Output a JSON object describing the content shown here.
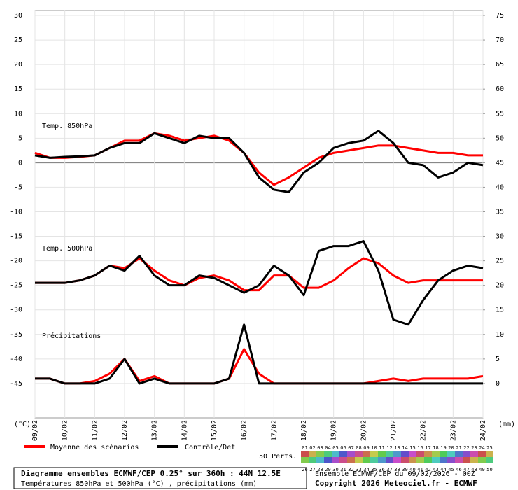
{
  "chart_data": {
    "type": "line",
    "panel_labels": [
      "Temp. 850hPa",
      "Temp. 500hPa",
      "Précipitations"
    ],
    "ylabel": "(°C)",
    "y2label": "(mm)",
    "x": [
      0,
      0.5,
      1,
      1.5,
      2,
      2.5,
      3,
      3.5,
      4,
      4.5,
      5,
      5.5,
      6,
      6.5,
      7,
      7.5,
      8,
      8.5,
      9,
      9.5,
      10,
      10.5,
      11,
      11.5,
      12,
      12.5,
      13,
      13.5,
      14,
      14.5,
      15
    ],
    "xlim": [
      0,
      15
    ],
    "xticks": [
      {
        "value": 0,
        "label": "09/02"
      },
      {
        "value": 1,
        "label": "10/02"
      },
      {
        "value": 2,
        "label": "11/02"
      },
      {
        "value": 3,
        "label": "12/02"
      },
      {
        "value": 4,
        "label": "13/02"
      },
      {
        "value": 5,
        "label": "14/02"
      },
      {
        "value": 6,
        "label": "15/02"
      },
      {
        "value": 7,
        "label": "16/02"
      },
      {
        "value": 8,
        "label": "17/02"
      },
      {
        "value": 9,
        "label": "18/02"
      },
      {
        "value": 10,
        "label": "19/02"
      },
      {
        "value": 11,
        "label": "20/02"
      },
      {
        "value": 12,
        "label": "21/02"
      },
      {
        "value": 13,
        "label": "22/02"
      },
      {
        "value": 14,
        "label": "23/02"
      },
      {
        "value": 15,
        "label": "24/02"
      }
    ],
    "ylim": [
      -52,
      31
    ],
    "yticks": [
      -45,
      -40,
      -35,
      -30,
      -25,
      -20,
      -15,
      -10,
      -5,
      0,
      5,
      10,
      15,
      20,
      25,
      30
    ],
    "y2lim": [
      -7,
      76
    ],
    "y2ticks": [
      0,
      5,
      10,
      15,
      20,
      25,
      30,
      35,
      40,
      45,
      50,
      55,
      60,
      65,
      70,
      75
    ],
    "grid": true,
    "series": [
      {
        "name": "Moyenne des scénarios",
        "color": "#ff0000",
        "values": [
          2,
          1,
          1,
          1.2,
          1.5,
          3,
          4.5,
          4.5,
          6,
          5.5,
          4.5,
          5,
          5.5,
          4.5,
          2,
          -2,
          -4.5,
          -3,
          -1,
          1,
          2,
          2.5,
          3,
          3.5,
          3.5,
          3,
          2.5,
          2,
          2,
          1.5,
          1.5
        ]
      },
      {
        "name": "Contrôle/Det",
        "color": "#000000",
        "values": [
          1.5,
          1,
          1.2,
          1.3,
          1.5,
          3,
          4,
          4,
          6,
          5,
          4,
          5.5,
          5,
          5,
          2,
          -3,
          -5.5,
          -6,
          -2,
          0,
          3,
          4,
          4.5,
          6.5,
          4,
          0,
          -0.5,
          -3,
          -2,
          0,
          -0.5
        ]
      },
      {
        "color": "#ff0000",
        "values": [
          -24.5,
          -24.5,
          -24.5,
          -24,
          -23,
          -21,
          -21.5,
          -19.5,
          -22,
          -24,
          -25,
          -23.5,
          -23,
          -24,
          -26,
          -26,
          -23,
          -23,
          -25.5,
          -25.5,
          -24,
          -21.5,
          -19.5,
          -20.5,
          -23,
          -24.5,
          -24,
          -24,
          -24,
          -24,
          -24
        ]
      },
      {
        "color": "#000000",
        "values": [
          -24.5,
          -24.5,
          -24.5,
          -24,
          -23,
          -21,
          -22,
          -19,
          -23,
          -25,
          -25,
          -23,
          -23.5,
          -25,
          -26.5,
          -25,
          -21,
          -23,
          -27,
          -18,
          -17,
          -17,
          -16,
          -22,
          -32,
          -33,
          -28,
          -24,
          -22,
          -21,
          -21.5
        ]
      },
      {
        "color": "#ff0000",
        "axis": "y2",
        "values": [
          1,
          1,
          0,
          0,
          0.5,
          2,
          5,
          0.5,
          1.5,
          0,
          0,
          0,
          0,
          1,
          7,
          2,
          0,
          0,
          0,
          0,
          0,
          0,
          0,
          0.5,
          1,
          0.5,
          1,
          1,
          1,
          1,
          1.5
        ]
      },
      {
        "color": "#000000",
        "axis": "y2",
        "values": [
          1,
          1,
          0,
          0,
          0,
          1,
          5,
          0,
          1,
          0,
          0,
          0,
          0,
          1,
          12,
          0,
          0,
          0,
          0,
          0,
          0,
          0,
          0,
          0,
          0,
          0,
          0,
          0,
          0,
          0,
          0
        ]
      }
    ],
    "perturbations": {
      "label": "50 Perts.",
      "ids": [
        "01",
        "02",
        "03",
        "04",
        "05",
        "06",
        "07",
        "08",
        "09",
        "10",
        "11",
        "12",
        "13",
        "14",
        "15",
        "16",
        "17",
        "18",
        "19",
        "20",
        "21",
        "22",
        "23",
        "24",
        "25",
        "26",
        "27",
        "28",
        "29",
        "30",
        "31",
        "32",
        "33",
        "34",
        "35",
        "36",
        "37",
        "38",
        "39",
        "40",
        "41",
        "42",
        "43",
        "44",
        "45",
        "46",
        "47",
        "48",
        "49",
        "50"
      ]
    },
    "footer": {
      "title": "Diagramme ensembles ECMWF/CEP 0.25° sur 360h : 44N 12.5E",
      "subtitle": "Températures 850hPa et 500hPa (°C) , précipitations (mm)",
      "run": "Ensemble ECMWF/CEP du 09/02/2026 - 00Z",
      "copyright": "Copyright 2026 Meteociel.fr - ECMWF"
    }
  }
}
